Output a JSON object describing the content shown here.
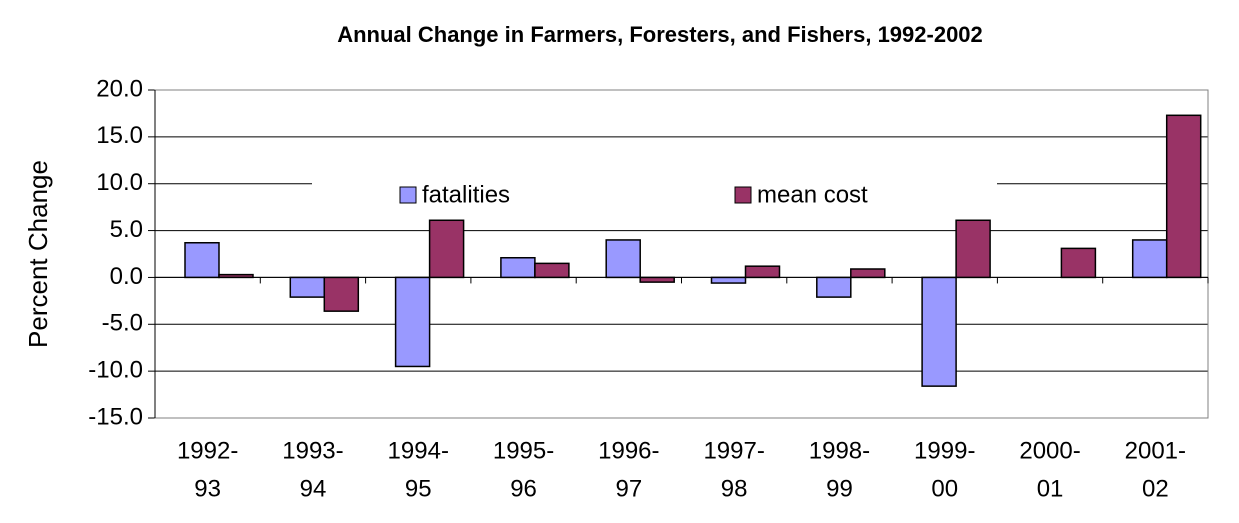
{
  "chart_data": {
    "type": "bar",
    "title": "Annual Change in Farmers, Foresters, and Fishers, 1992-2002",
    "y_label": "Percent Change",
    "categories": [
      [
        "1992-",
        "93"
      ],
      [
        "1993-",
        "94"
      ],
      [
        "1994-",
        "95"
      ],
      [
        "1995-",
        "96"
      ],
      [
        "1996-",
        "97"
      ],
      [
        "1997-",
        "98"
      ],
      [
        "1998-",
        "99"
      ],
      [
        "1999-",
        "00"
      ],
      [
        "2000-",
        "01"
      ],
      [
        "2001-",
        "02"
      ]
    ],
    "series": [
      {
        "name": "fatalities",
        "color": "#9999ff",
        "values": [
          3.7,
          -2.1,
          -9.5,
          2.1,
          4.0,
          -0.6,
          -2.1,
          -11.6,
          0,
          4.0
        ]
      },
      {
        "name": "mean cost",
        "color": "#993366",
        "values": [
          0.3,
          -3.6,
          6.1,
          1.5,
          -0.5,
          1.2,
          0.9,
          6.1,
          3.1,
          17.3
        ]
      }
    ],
    "ylim": [
      -15,
      20
    ],
    "yticks": [
      {
        "value": -15,
        "label": "-15.0"
      },
      {
        "value": -10,
        "label": "-10.0"
      },
      {
        "value": -5,
        "label": "-5.0"
      },
      {
        "value": 0,
        "label": "0.0"
      },
      {
        "value": 5,
        "label": "5.0"
      },
      {
        "value": 10,
        "label": "10.0"
      },
      {
        "value": 15,
        "label": "15.0"
      },
      {
        "value": 20,
        "label": "20.0"
      }
    ],
    "grid": true,
    "legend": "top"
  }
}
